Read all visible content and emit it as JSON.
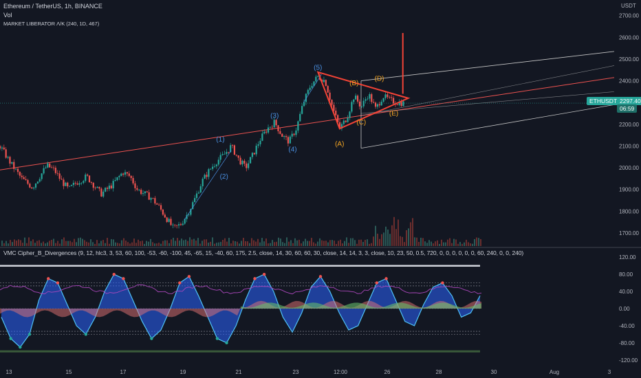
{
  "header": {
    "title": "Ethereum / TetherUS, 1h, BINANCE",
    "vol": "Vol",
    "indicator": "MARKET LIBERATOR Λ/Κ (240, 1D, 467)",
    "currency": "USDT"
  },
  "price_labels": {
    "symbol": "ETHUSDT",
    "price": "2297.40",
    "timer": "06:59"
  },
  "indicator_header": "VMC Cipher_B_Divergences (9, 12, hlc3, 3, 53, 60, 100, -53, -60, -100, 45, -65, 15, -40, 60, 175, 2.5, close, 14, 30, 60, 60, 30, close, 14, 14, 3, 3, close, 10, 23, 50, 0.5, 720, 0, 0, 0, 0, 0, 0, 60, 240, 0, 0, 240)",
  "colors": {
    "background": "#131722",
    "up": "#26a69a",
    "down": "#ef5350",
    "channel": "#c8c8c8",
    "trend": "#ef5350",
    "wave_blue": "#4a90e2",
    "wave_orange": "#f5a623",
    "triangle": "#f44336"
  },
  "chart_data": [
    {
      "type": "line",
      "title": "Ethereum / TetherUS, 1h, BINANCE",
      "x_ticks": [
        "13",
        "15",
        "17",
        "19",
        "21",
        "23",
        "12:00",
        "26",
        "28",
        "30",
        "Aug",
        "3"
      ],
      "y_ticks": [
        "2700.00",
        "2600.00",
        "2500.00",
        "2400.00",
        "2300.00",
        "2200.00",
        "2100.00",
        "2000.00",
        "1900.00",
        "1800.00",
        "1700.00"
      ],
      "ylim": [
        1640,
        2740
      ],
      "last_price": 2297.4,
      "price_path": [
        {
          "x": 0,
          "y": 2100
        },
        {
          "x": 3,
          "y": 2020
        },
        {
          "x": 6,
          "y": 1950
        },
        {
          "x": 9,
          "y": 1910
        },
        {
          "x": 11,
          "y": 1960
        },
        {
          "x": 13,
          "y": 2010
        },
        {
          "x": 15,
          "y": 1990
        },
        {
          "x": 17,
          "y": 1940
        },
        {
          "x": 19,
          "y": 1900
        },
        {
          "x": 21,
          "y": 1930
        },
        {
          "x": 24,
          "y": 1960
        },
        {
          "x": 26,
          "y": 1920
        },
        {
          "x": 28,
          "y": 1880
        },
        {
          "x": 31,
          "y": 1920
        },
        {
          "x": 34,
          "y": 1980
        },
        {
          "x": 36,
          "y": 1960
        },
        {
          "x": 38,
          "y": 1900
        },
        {
          "x": 40,
          "y": 1880
        },
        {
          "x": 42,
          "y": 1860
        },
        {
          "x": 44,
          "y": 1820
        },
        {
          "x": 46,
          "y": 1770
        },
        {
          "x": 48,
          "y": 1720
        },
        {
          "x": 50,
          "y": 1740
        },
        {
          "x": 52,
          "y": 1790
        },
        {
          "x": 54,
          "y": 1860
        },
        {
          "x": 56,
          "y": 1940
        },
        {
          "x": 58,
          "y": 1990
        },
        {
          "x": 60,
          "y": 2030
        },
        {
          "x": 62,
          "y": 2060
        },
        {
          "x": 64,
          "y": 2100
        },
        {
          "x": 66,
          "y": 2040
        },
        {
          "x": 68,
          "y": 2000
        },
        {
          "x": 70,
          "y": 2060
        },
        {
          "x": 72,
          "y": 2130
        },
        {
          "x": 74,
          "y": 2180
        },
        {
          "x": 76,
          "y": 2210
        },
        {
          "x": 78,
          "y": 2150
        },
        {
          "x": 80,
          "y": 2120
        },
        {
          "x": 82,
          "y": 2180
        },
        {
          "x": 84,
          "y": 2300
        },
        {
          "x": 86,
          "y": 2380
        },
        {
          "x": 88,
          "y": 2420
        },
        {
          "x": 90,
          "y": 2400
        },
        {
          "x": 92,
          "y": 2280
        },
        {
          "x": 94,
          "y": 2180
        },
        {
          "x": 96,
          "y": 2230
        },
        {
          "x": 98,
          "y": 2330
        },
        {
          "x": 100,
          "y": 2280
        },
        {
          "x": 102,
          "y": 2340
        },
        {
          "x": 104,
          "y": 2270
        },
        {
          "x": 106,
          "y": 2330
        },
        {
          "x": 108,
          "y": 2310
        },
        {
          "x": 110,
          "y": 2300
        },
        {
          "x": 112,
          "y": 2297
        }
      ],
      "x_range": [
        0,
        170
      ]
    },
    {
      "type": "line",
      "title": "VMC Cipher_B_Divergences",
      "y_ticks": [
        "120.00",
        "80.00",
        "40.00",
        "0.00",
        "-40.00",
        "-80.00",
        "-120.00"
      ],
      "ylim": [
        -130,
        130
      ],
      "reference_levels": [
        100,
        60,
        53,
        -53,
        -60
      ],
      "series": [
        {
          "name": "",
          "values": [
            -20,
            -70,
            -90,
            -60,
            20,
            70,
            60,
            10,
            -40,
            -60,
            -20,
            40,
            80,
            70,
            20,
            -30,
            -70,
            -50,
            0,
            60,
            75,
            30,
            -20,
            -70,
            -80,
            -40,
            20,
            70,
            80,
            40,
            -20,
            -55,
            -10,
            50,
            75,
            40,
            -10,
            -50,
            -40,
            10,
            60,
            70,
            20,
            -30,
            -40,
            10,
            50,
            60,
            30,
            -20,
            -10,
            30
          ]
        }
      ]
    }
  ],
  "wave_labels": [
    {
      "text": "(1)",
      "x": 61,
      "y": 2120,
      "color": "blue"
    },
    {
      "text": "(2)",
      "x": 62,
      "y": 1950,
      "color": "blue"
    },
    {
      "text": "(3)",
      "x": 76,
      "y": 2230,
      "color": "blue"
    },
    {
      "text": "(4)",
      "x": 81,
      "y": 2075,
      "color": "blue"
    },
    {
      "text": "(5)",
      "x": 88,
      "y": 2450,
      "color": "blue"
    },
    {
      "text": "(A)",
      "x": 94,
      "y": 2100,
      "color": "orange"
    },
    {
      "text": "(B)",
      "x": 98,
      "y": 2380,
      "color": "orange"
    },
    {
      "text": "(C)",
      "x": 100,
      "y": 2200,
      "color": "orange"
    },
    {
      "text": "(D)",
      "x": 105,
      "y": 2400,
      "color": "orange"
    },
    {
      "text": "(E)",
      "x": 109,
      "y": 2240,
      "color": "orange"
    }
  ]
}
